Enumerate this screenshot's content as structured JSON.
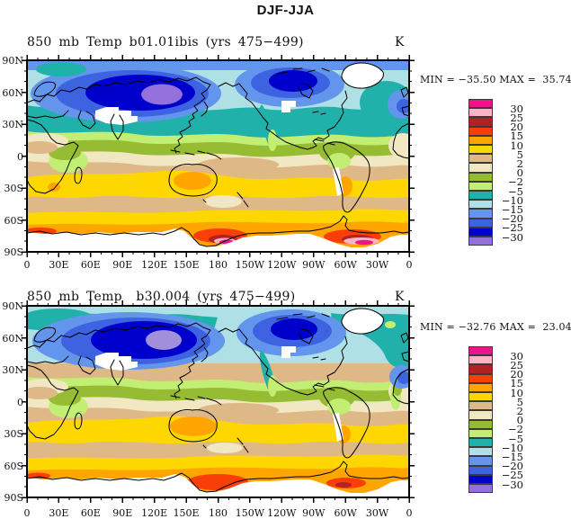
{
  "main_title": "DJF-JJA",
  "panels": [
    {
      "title": "850 mb Temp b01.01ibis (yrs 475−499)",
      "units": "K",
      "stats": "MIN = −35.50 MAX =  35.74"
    },
    {
      "title": "850 mb Temp  b30.004 (yrs 475−499)",
      "units": "K",
      "stats": "MIN = −32.76 MAX =  23.04"
    }
  ],
  "x_axis": {
    "labels": [
      "0",
      "30E",
      "60E",
      "90E",
      "120E",
      "150E",
      "180",
      "150W",
      "120W",
      "90W",
      "60W",
      "30W",
      "0"
    ]
  },
  "y_axis": {
    "labels": [
      "90N",
      "60N",
      "30N",
      "0",
      "30S",
      "60S",
      "90S"
    ]
  },
  "colorbar": {
    "labels": [
      "30",
      "25",
      "20",
      "15",
      "10",
      "5",
      "2",
      "0",
      "−2",
      "−5",
      "−10",
      "−15",
      "−20",
      "−25",
      "−30"
    ],
    "colors": [
      "#F0148C",
      "#FFB3C6",
      "#B22222",
      "#FA3E08",
      "#FFA500",
      "#FFD700",
      "#DEB887",
      "#F2E7C3",
      "#95BC32",
      "#C2EE74",
      "#20B2AA",
      "#AEE0E6",
      "#6495ED",
      "#3E63E0",
      "#0000CD",
      "#9370DB"
    ]
  },
  "chart_data": [
    {
      "type": "heatmap",
      "subtype": "filled-contour-world-map",
      "title": "850 mb Temp b01.01ibis (yrs 475−499)",
      "comparison": "DJF-JJA",
      "units": "K",
      "min": -35.5,
      "max": 35.74,
      "contour_levels": [
        -30,
        -25,
        -20,
        -15,
        -10,
        -5,
        -2,
        0,
        2,
        5,
        10,
        15,
        20,
        25,
        30
      ],
      "x_tick_labels": [
        "0",
        "30E",
        "60E",
        "90E",
        "120E",
        "150E",
        "180",
        "150W",
        "120W",
        "90W",
        "60W",
        "30W",
        "0"
      ],
      "y_tick_labels": [
        "90N",
        "60N",
        "30N",
        "0",
        "30S",
        "60S",
        "90S"
      ],
      "legend_position": "right",
      "notes": "Northern Hemisphere negative (blue/purple, coldest over Siberia and Canada); Southern Hemisphere positive (tan/gold/orange, warmest fringe along Antarctic coast); white = masked high topography (Tibet, Greenland, Rockies, Andes, Antarctica)"
    },
    {
      "type": "heatmap",
      "subtype": "filled-contour-world-map",
      "title": "850 mb Temp  b30.004 (yrs 475−499)",
      "comparison": "DJF-JJA",
      "units": "K",
      "min": -32.76,
      "max": 23.04,
      "contour_levels": [
        -30,
        -25,
        -20,
        -15,
        -10,
        -5,
        -2,
        0,
        2,
        5,
        10,
        15,
        20,
        25,
        30
      ],
      "x_tick_labels": [
        "0",
        "30E",
        "60E",
        "90E",
        "120E",
        "150E",
        "180",
        "150W",
        "120W",
        "90W",
        "60W",
        "30W",
        "0"
      ],
      "y_tick_labels": [
        "90N",
        "60N",
        "30N",
        "0",
        "30S",
        "60S",
        "90S"
      ],
      "legend_position": "right",
      "notes": "Same pattern as top panel but weaker extremes; pale-cyan Arctic cap, teal 80-70N band, cold core over Siberia with lavender center"
    }
  ]
}
